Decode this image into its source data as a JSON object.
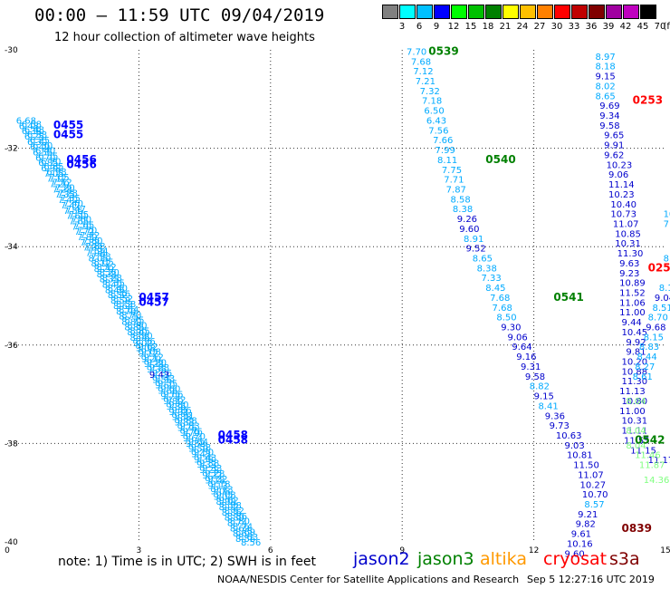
{
  "title": "00:00 – 11:59 UTC 09/04/2019",
  "subtitle": "12 hour collection of altimeter wave heights",
  "colorbar": {
    "unit": "(ft)",
    "colors": [
      "#808080",
      "#00ffff",
      "#00c0ff",
      "#0000ff",
      "#00ff00",
      "#00c000",
      "#008000",
      "#ffff00",
      "#ffc000",
      "#ff8000",
      "#ff0000",
      "#c00000",
      "#800000",
      "#a000a0",
      "#c000c0",
      "#000000"
    ],
    "labels": [
      "3",
      "6",
      "9",
      "12",
      "15",
      "18",
      "21",
      "24",
      "27",
      "30",
      "33",
      "36",
      "39",
      "42",
      "45",
      "70"
    ]
  },
  "note": "note: 1) Time is in UTC; 2) SWH is in feet",
  "legend": [
    {
      "name": "jason2",
      "color": "#0000cc"
    },
    {
      "name": "jason3",
      "color": "#008000"
    },
    {
      "name": "altika",
      "color": "#ff9900"
    },
    {
      "name": "cryosat",
      "color": "#ff0000"
    },
    {
      "name": "s3a",
      "color": "#800000"
    }
  ],
  "footer": "NOAA/NESDIS Center for Satellite Applications and Research",
  "footer_time": "Sep  5 12:27:16 UTC 2019",
  "chart_data": {
    "type": "scatter",
    "xlim": [
      0,
      15
    ],
    "ylim": [
      -40,
      -30
    ],
    "x_ticks": [
      "0",
      "3",
      "6",
      "9",
      "12",
      "15"
    ],
    "y_ticks": [
      "-30",
      "-32",
      "-34",
      "-36",
      "-38",
      "-40"
    ],
    "grid": true,
    "time_labels": [
      {
        "text": "0455",
        "x": 1.05,
        "y": -31.6,
        "color": "#0000ff"
      },
      {
        "text": "0455",
        "x": 1.05,
        "y": -31.8,
        "color": "#0000ff"
      },
      {
        "text": "0456",
        "x": 1.35,
        "y": -32.3,
        "color": "#0000ff"
      },
      {
        "text": "0456",
        "x": 1.35,
        "y": -32.4,
        "color": "#0000ff"
      },
      {
        "text": "0457",
        "x": 3.0,
        "y": -35.1,
        "color": "#0000ff"
      },
      {
        "text": "0457",
        "x": 3.0,
        "y": -35.2,
        "color": "#0000ff"
      },
      {
        "text": "0458",
        "x": 4.8,
        "y": -37.9,
        "color": "#0000ff"
      },
      {
        "text": "0458",
        "x": 4.8,
        "y": -38.0,
        "color": "#0000ff"
      },
      {
        "text": "0539",
        "x": 9.6,
        "y": -30.1,
        "color": "#008000"
      },
      {
        "text": "0540",
        "x": 10.9,
        "y": -32.3,
        "color": "#008000"
      },
      {
        "text": "0541",
        "x": 12.45,
        "y": -35.1,
        "color": "#008000"
      },
      {
        "text": "0542",
        "x": 14.3,
        "y": -38.0,
        "color": "#008000"
      },
      {
        "text": "0253",
        "x": 14.25,
        "y": -31.1,
        "color": "#ff0000"
      },
      {
        "text": "0252",
        "x": 14.6,
        "y": -34.5,
        "color": "#ff0000"
      },
      {
        "text": "0839",
        "x": 14.0,
        "y": -39.8,
        "color": "#800000"
      }
    ],
    "track_a_values": [
      "6.68",
      "6.48",
      "6.38",
      "6.25",
      "6.30",
      "6.40",
      "6.55",
      "6.70",
      "6.85",
      "6.98",
      "7.05",
      "7.12",
      "7.20",
      "7.28",
      "7.35",
      "7.40",
      "7.47",
      "7.55",
      "7.60",
      "7.65",
      "7.70",
      "7.72",
      "7.80",
      "7.88",
      "7.94",
      "7.98",
      "8.05",
      "8.12",
      "8.20",
      "8.28",
      "8.35",
      "8.40",
      "8.46",
      "8.52",
      "8.58",
      "8.64",
      "8.70",
      "8.75",
      "8.80",
      "8.85",
      "8.90",
      "8.96",
      "9.02",
      "9.08",
      "9.12",
      "9.20",
      "9.28",
      "9.36",
      "9.43",
      "9.55",
      "9.60",
      "9.66",
      "9.72",
      "9.80",
      "9.86",
      "9.91",
      "9.88",
      "9.83",
      "9.76",
      "9.70",
      "9.64",
      "9.58",
      "9.50",
      "9.43",
      "9.38",
      "9.33",
      "9.28",
      "9.22",
      "9.18",
      "9.13",
      "9.08",
      "9.02",
      "8.98",
      "8.92",
      "8.86",
      "8.80",
      "8.74",
      "8.69",
      "8.63",
      "8.56"
    ],
    "track_b": [
      [
        "7.70",
        9.1,
        -30.1,
        "#00aaff"
      ],
      [
        "7.68",
        9.2,
        -30.3,
        "#00aaff"
      ],
      [
        "7.12",
        9.25,
        -30.5,
        "#00aaff"
      ],
      [
        "7.21",
        9.3,
        -30.7,
        "#00aaff"
      ],
      [
        "7.32",
        9.4,
        -30.9,
        "#00aaff"
      ],
      [
        "7.18",
        9.45,
        -31.1,
        "#00aaff"
      ],
      [
        "6.50",
        9.5,
        -31.3,
        "#00aaff"
      ],
      [
        "6.43",
        9.55,
        -31.5,
        "#00aaff"
      ],
      [
        "7.56",
        9.6,
        -31.7,
        "#00aaff"
      ],
      [
        "7.66",
        9.7,
        -31.9,
        "#00aaff"
      ],
      [
        "7.99",
        9.75,
        -32.1,
        "#00aaff"
      ],
      [
        "8.11",
        9.8,
        -32.3,
        "#00aaff"
      ],
      [
        "7.75",
        9.9,
        -32.5,
        "#00aaff"
      ],
      [
        "7.71",
        9.95,
        -32.7,
        "#00aaff"
      ],
      [
        "7.87",
        10.0,
        -32.9,
        "#00aaff"
      ],
      [
        "8.58",
        10.1,
        -33.1,
        "#00aaff"
      ],
      [
        "8.38",
        10.15,
        -33.3,
        "#00aaff"
      ],
      [
        "9.26",
        10.25,
        -33.5,
        "#0000cc"
      ],
      [
        "9.60",
        10.3,
        -33.7,
        "#0000cc"
      ],
      [
        "8.91",
        10.4,
        -33.9,
        "#00aaff"
      ],
      [
        "9.52",
        10.45,
        -34.1,
        "#0000cc"
      ],
      [
        "8.65",
        10.6,
        -34.3,
        "#00aaff"
      ],
      [
        "8.38",
        10.7,
        -34.5,
        "#00aaff"
      ],
      [
        "7.33",
        10.8,
        -34.7,
        "#00aaff"
      ],
      [
        "8.45",
        10.9,
        -34.9,
        "#00aaff"
      ],
      [
        "7.68",
        11.0,
        -35.1,
        "#00aaff"
      ],
      [
        "7.68",
        11.05,
        -35.3,
        "#00aaff"
      ],
      [
        "8.50",
        11.15,
        -35.5,
        "#00aaff"
      ],
      [
        "9.30",
        11.25,
        -35.7,
        "#0000cc"
      ],
      [
        "9.06",
        11.4,
        -35.9,
        "#0000cc"
      ],
      [
        "9.64",
        11.5,
        -36.1,
        "#0000cc"
      ],
      [
        "9.16",
        11.6,
        -36.3,
        "#0000cc"
      ],
      [
        "9.31",
        11.7,
        -36.5,
        "#0000cc"
      ],
      [
        "9.58",
        11.8,
        -36.7,
        "#0000cc"
      ],
      [
        "8.82",
        11.9,
        -36.9,
        "#00aaff"
      ],
      [
        "9.15",
        12.0,
        -37.1,
        "#0000cc"
      ],
      [
        "8.41",
        12.1,
        -37.3,
        "#00aaff"
      ],
      [
        "9.36",
        12.25,
        -37.5,
        "#0000cc"
      ],
      [
        "9.73",
        12.35,
        -37.7,
        "#0000cc"
      ],
      [
        "10.63",
        12.5,
        -37.9,
        "#0000cc"
      ],
      [
        "9.03",
        12.7,
        -38.1,
        "#0000cc"
      ],
      [
        "10.81",
        12.75,
        -38.3,
        "#0000cc"
      ],
      [
        "11.50",
        12.9,
        -38.5,
        "#0000cc"
      ],
      [
        "11.07",
        13.0,
        -38.7,
        "#0000cc"
      ],
      [
        "10.27",
        13.05,
        -38.9,
        "#0000cc"
      ],
      [
        "10.70",
        13.1,
        -39.1,
        "#0000cc"
      ],
      [
        "8.57",
        13.15,
        -39.3,
        "#00aaff"
      ],
      [
        "9.21",
        13.0,
        -39.5,
        "#0000cc"
      ],
      [
        "9.82",
        12.95,
        -39.7,
        "#0000cc"
      ],
      [
        "9.61",
        12.85,
        -39.9,
        "#0000cc"
      ],
      [
        "10.16",
        12.75,
        -40.1,
        "#0000cc"
      ],
      [
        "9.60",
        12.7,
        -40.3,
        "#0000cc"
      ]
    ],
    "track_c": [
      [
        "8.97",
        13.4,
        -30.2,
        "#00aaff"
      ],
      [
        "8.18",
        13.4,
        -30.4,
        "#00aaff"
      ],
      [
        "9.15",
        13.4,
        -30.6,
        "#0000cc"
      ],
      [
        "8.02",
        13.4,
        -30.8,
        "#00aaff"
      ],
      [
        "8.65",
        13.4,
        -31.0,
        "#00aaff"
      ],
      [
        "9.69",
        13.5,
        -31.2,
        "#0000cc"
      ],
      [
        "9.34",
        13.5,
        -31.4,
        "#0000cc"
      ],
      [
        "9.58",
        13.5,
        -31.6,
        "#0000cc"
      ],
      [
        "9.65",
        13.6,
        -31.8,
        "#0000cc"
      ],
      [
        "9.91",
        13.6,
        -32.0,
        "#0000cc"
      ],
      [
        "9.62",
        13.6,
        -32.2,
        "#0000cc"
      ],
      [
        "10.23",
        13.65,
        -32.4,
        "#0000cc"
      ],
      [
        "9.06",
        13.7,
        -32.6,
        "#0000cc"
      ],
      [
        "11.14",
        13.7,
        -32.8,
        "#0000cc"
      ],
      [
        "10.23",
        13.7,
        -33.0,
        "#0000cc"
      ],
      [
        "10.40",
        13.75,
        -33.2,
        "#0000cc"
      ],
      [
        "10.73",
        13.75,
        -33.4,
        "#0000cc"
      ],
      [
        "11.07",
        13.8,
        -33.6,
        "#0000cc"
      ],
      [
        "10.85",
        13.85,
        -33.8,
        "#0000cc"
      ],
      [
        "10.31",
        13.85,
        -34.0,
        "#0000cc"
      ],
      [
        "11.30",
        13.9,
        -34.2,
        "#0000cc"
      ],
      [
        "9.63",
        13.95,
        -34.4,
        "#0000cc"
      ],
      [
        "9.23",
        13.95,
        -34.6,
        "#0000cc"
      ],
      [
        "10.89",
        13.95,
        -34.8,
        "#0000cc"
      ],
      [
        "11.52",
        13.95,
        -35.0,
        "#0000cc"
      ],
      [
        "11.06",
        13.95,
        -35.2,
        "#0000cc"
      ],
      [
        "11.00",
        13.95,
        -35.4,
        "#0000cc"
      ],
      [
        "9.44",
        14.0,
        -35.6,
        "#0000cc"
      ],
      [
        "10.45",
        14.0,
        -35.8,
        "#0000cc"
      ],
      [
        "9.92",
        14.1,
        -36.0,
        "#0000cc"
      ],
      [
        "9.81",
        14.1,
        -36.2,
        "#0000cc"
      ],
      [
        "10.20",
        14.0,
        -36.4,
        "#0000cc"
      ],
      [
        "10.88",
        14.0,
        -36.6,
        "#0000cc"
      ],
      [
        "11.30",
        14.0,
        -36.8,
        "#0000cc"
      ],
      [
        "11.13",
        13.95,
        -37.0,
        "#0000cc"
      ],
      [
        "10.80",
        14.0,
        -37.2,
        "#0000cc"
      ],
      [
        "11.00",
        13.95,
        -37.4,
        "#0000cc"
      ],
      [
        "10.31",
        14.0,
        -37.6,
        "#0000cc"
      ],
      [
        "11.11",
        14.0,
        -37.8,
        "#0000cc"
      ],
      [
        "11.55",
        14.05,
        -38.0,
        "#0000cc"
      ],
      [
        "11.15",
        14.2,
        -38.2,
        "#0000cc"
      ],
      [
        "11.17",
        14.6,
        -38.4,
        "#0000cc"
      ]
    ],
    "track_d": [
      [
        "10",
        14.95,
        -33.4,
        "#00aaff"
      ],
      [
        "7",
        14.95,
        -33.6,
        "#00aaff"
      ],
      [
        "8.9",
        14.95,
        -34.3,
        "#00aaff"
      ],
      [
        "8.19",
        14.85,
        -34.9,
        "#00aaff"
      ],
      [
        "9.04",
        14.75,
        -35.1,
        "#0000cc"
      ],
      [
        "8.51",
        14.7,
        -35.3,
        "#00aaff"
      ],
      [
        "8.70",
        14.6,
        -35.5,
        "#00aaff"
      ],
      [
        "9.68",
        14.55,
        -35.7,
        "#0000cc"
      ],
      [
        "8.15",
        14.5,
        -35.9,
        "#00aaff"
      ],
      [
        "8.83",
        14.4,
        -36.1,
        "#00aaff"
      ],
      [
        "8.44",
        14.35,
        -36.3,
        "#00aaff"
      ],
      [
        "8.27",
        14.3,
        -36.5,
        "#00aaff"
      ],
      [
        "8.61",
        14.25,
        -36.7,
        "#00aaff"
      ],
      [
        "8.04",
        14.1,
        -37.2,
        "#80ff80"
      ],
      [
        "8.04",
        14.1,
        -37.8,
        "#80ff80"
      ],
      [
        "8.04",
        14.1,
        -38.1,
        "#80ff80"
      ],
      [
        "11.46",
        14.3,
        -38.3,
        "#80ff80"
      ],
      [
        "11.87",
        14.4,
        -38.5,
        "#80ff80"
      ],
      [
        "14.36",
        14.5,
        -38.8,
        "#80ff80"
      ]
    ]
  }
}
